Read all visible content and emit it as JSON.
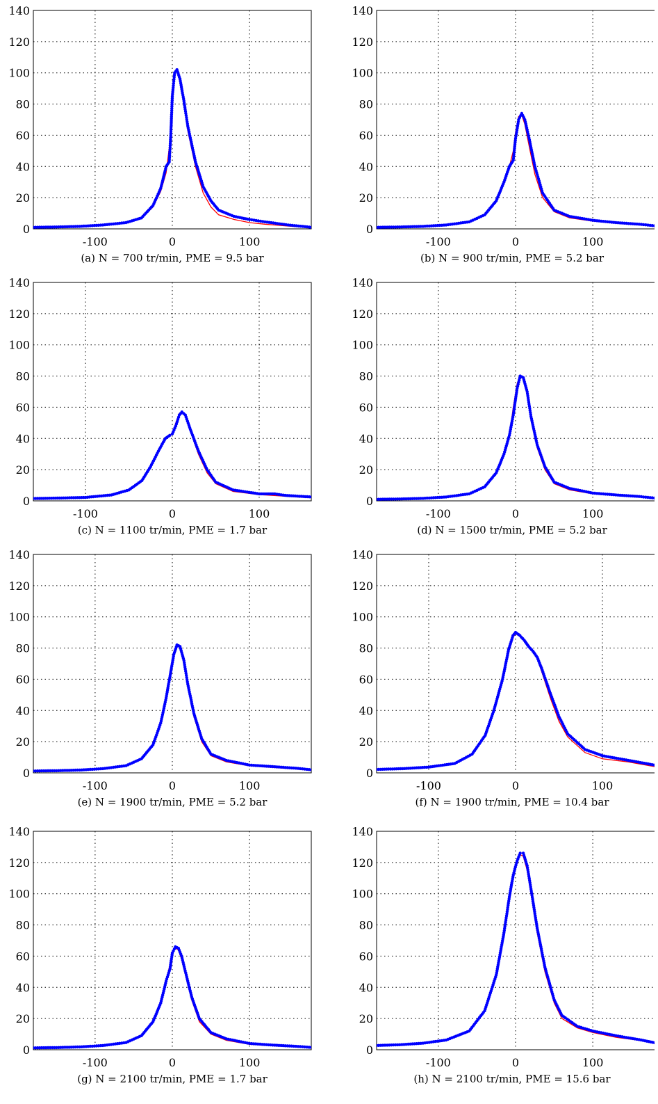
{
  "figure": {
    "y_ticks": [
      "0",
      "20",
      "40",
      "60",
      "80",
      "100",
      "120",
      "140"
    ],
    "x_ticks": [
      "-100",
      "0",
      "100"
    ]
  },
  "chart_data": [
    {
      "type": "line",
      "caption": "(a) N = 700 tr/min, PME = 9.5 bar",
      "xlim": [
        -180,
        180
      ],
      "ylim": [
        0,
        140
      ],
      "grid": true,
      "series": [
        {
          "color": "#ff0000",
          "marker": "line",
          "x": [
            -180,
            -150,
            -120,
            -90,
            -60,
            -40,
            -25,
            -15,
            -8,
            -3,
            0,
            3,
            6,
            10,
            15,
            20,
            30,
            40,
            50,
            60,
            80,
            100,
            120,
            150,
            180
          ],
          "y": [
            1,
            1.2,
            1.6,
            2.5,
            4,
            7,
            14,
            24,
            36,
            56,
            85,
            100,
            102,
            95,
            80,
            63,
            40,
            23,
            14,
            9,
            6,
            4,
            3,
            1.8,
            0.8
          ]
        },
        {
          "color": "#0000ff",
          "marker": "dot",
          "x": [
            -180,
            -150,
            -120,
            -90,
            -60,
            -40,
            -25,
            -15,
            -8,
            -4,
            -2,
            0,
            3,
            6,
            10,
            15,
            20,
            30,
            40,
            50,
            60,
            80,
            100,
            120,
            150,
            180
          ],
          "y": [
            1,
            1.2,
            1.6,
            2.5,
            4,
            7,
            15,
            26,
            40,
            43,
            60,
            85,
            100,
            102,
            96,
            82,
            66,
            43,
            27,
            18,
            12,
            8,
            6,
            4.5,
            2.5,
            1
          ]
        }
      ]
    },
    {
      "type": "line",
      "caption": "(b) N = 900 tr/min, PME = 5.2 bar",
      "xlim": [
        -180,
        180
      ],
      "ylim": [
        0,
        140
      ],
      "grid": true,
      "series": [
        {
          "color": "#ff0000",
          "marker": "line",
          "x": [
            -180,
            -150,
            -120,
            -90,
            -60,
            -40,
            -25,
            -15,
            -8,
            -3,
            0,
            4,
            8,
            12,
            18,
            25,
            35,
            50,
            70,
            100,
            130,
            160,
            180
          ],
          "y": [
            1,
            1.2,
            1.6,
            2.5,
            4.5,
            9,
            18,
            30,
            40,
            50,
            62,
            72,
            73,
            67,
            52,
            35,
            20,
            11,
            7,
            5,
            3.5,
            2.5,
            2
          ]
        },
        {
          "color": "#0000ff",
          "marker": "dot",
          "x": [
            -180,
            -150,
            -120,
            -90,
            -60,
            -40,
            -25,
            -15,
            -8,
            -3,
            0,
            4,
            8,
            12,
            18,
            25,
            35,
            50,
            70,
            100,
            130,
            160,
            180
          ],
          "y": [
            1,
            1.2,
            1.6,
            2.5,
            4.5,
            9,
            18,
            30,
            40,
            44,
            58,
            70,
            74,
            70,
            57,
            40,
            23,
            12,
            8,
            5.5,
            4,
            3,
            2
          ]
        }
      ]
    },
    {
      "type": "line",
      "caption": "(c) N = 1100 tr/min, PME = 1.7 bar",
      "xlim": [
        -160,
        160
      ],
      "ylim": [
        0,
        140
      ],
      "grid": true,
      "series": [
        {
          "color": "#ff0000",
          "marker": "line",
          "x": [
            -160,
            -130,
            -100,
            -70,
            -50,
            -35,
            -25,
            -15,
            -8,
            -3,
            0,
            4,
            8,
            11,
            15,
            20,
            30,
            40,
            50,
            70,
            100,
            130,
            160
          ],
          "y": [
            1,
            1.3,
            2,
            3.5,
            7,
            13,
            22,
            33,
            40,
            42,
            43,
            50,
            56,
            57,
            54,
            46,
            30,
            18,
            11,
            6,
            4,
            3,
            2
          ]
        },
        {
          "color": "#0000ff",
          "marker": "dot",
          "x": [
            -160,
            -130,
            -100,
            -70,
            -50,
            -35,
            -25,
            -15,
            -8,
            -3,
            0,
            4,
            8,
            11,
            15,
            20,
            30,
            40,
            50,
            70,
            100,
            118,
            130,
            160
          ],
          "y": [
            1.5,
            1.8,
            2.2,
            3.8,
            7,
            13,
            22,
            33,
            40,
            42,
            43,
            48,
            55,
            57,
            55,
            47,
            32,
            20,
            12,
            7,
            4.5,
            4.5,
            3.5,
            2.5
          ]
        }
      ]
    },
    {
      "type": "line",
      "caption": "(d) N = 1500 tr/min, PME = 5.2 bar",
      "xlim": [
        -180,
        180
      ],
      "ylim": [
        0,
        140
      ],
      "grid": true,
      "series": [
        {
          "color": "#ff0000",
          "marker": "line",
          "x": [
            -180,
            -150,
            -120,
            -90,
            -60,
            -40,
            -25,
            -15,
            -8,
            -3,
            2,
            6,
            10,
            15,
            20,
            28,
            38,
            50,
            70,
            100,
            130,
            160,
            180
          ],
          "y": [
            1,
            1.2,
            1.6,
            2.5,
            4.5,
            9,
            18,
            30,
            42,
            60,
            75,
            80,
            78,
            68,
            52,
            34,
            20,
            11,
            7,
            4.5,
            3.5,
            2.5,
            1.5
          ]
        },
        {
          "color": "#0000ff",
          "marker": "dot",
          "x": [
            -180,
            -150,
            -120,
            -90,
            -60,
            -40,
            -25,
            -15,
            -8,
            -3,
            2,
            6,
            10,
            15,
            20,
            28,
            38,
            50,
            70,
            100,
            130,
            160,
            180
          ],
          "y": [
            1,
            1.2,
            1.6,
            2.5,
            4.5,
            9,
            18,
            30,
            42,
            55,
            72,
            80,
            79,
            70,
            54,
            36,
            22,
            12,
            8,
            5,
            3.8,
            2.8,
            1.8
          ]
        }
      ]
    },
    {
      "type": "line",
      "caption": "(e) N = 1900 tr/min, PME = 5.2 bar",
      "xlim": [
        -180,
        180
      ],
      "ylim": [
        0,
        140
      ],
      "grid": true,
      "series": [
        {
          "color": "#ff0000",
          "marker": "line",
          "x": [
            -180,
            -150,
            -120,
            -90,
            -60,
            -40,
            -25,
            -15,
            -8,
            -3,
            2,
            6,
            10,
            15,
            20,
            28,
            38,
            50,
            70,
            100,
            130,
            160,
            180
          ],
          "y": [
            1,
            1.2,
            1.6,
            2.5,
            4.5,
            9,
            18,
            32,
            48,
            62,
            76,
            82,
            80,
            70,
            55,
            36,
            20,
            11,
            7,
            4.5,
            3.5,
            2.5,
            1.5
          ]
        },
        {
          "color": "#0000ff",
          "marker": "dot",
          "x": [
            -180,
            -150,
            -120,
            -90,
            -60,
            -40,
            -25,
            -15,
            -8,
            -3,
            2,
            6,
            10,
            15,
            20,
            28,
            38,
            50,
            70,
            100,
            130,
            160,
            180
          ],
          "y": [
            1.2,
            1.4,
            1.8,
            2.7,
            4.6,
            9,
            18,
            32,
            48,
            62,
            76,
            82,
            81,
            72,
            57,
            38,
            22,
            12,
            8,
            5,
            4,
            3,
            2
          ]
        }
      ]
    },
    {
      "type": "line",
      "caption": "(f) N = 1900 tr/min, PME = 10.4 bar",
      "xlim": [
        -160,
        160
      ],
      "ylim": [
        0,
        140
      ],
      "grid": true,
      "series": [
        {
          "color": "#ff0000",
          "marker": "line",
          "x": [
            -160,
            -130,
            -100,
            -70,
            -50,
            -35,
            -25,
            -15,
            -8,
            -3,
            0,
            5,
            10,
            15,
            20,
            25,
            30,
            40,
            50,
            60,
            80,
            100,
            130,
            160
          ],
          "y": [
            2,
            2.5,
            3.5,
            6,
            12,
            24,
            40,
            60,
            78,
            87,
            89,
            88,
            85,
            82,
            78,
            73,
            65,
            48,
            33,
            23,
            13,
            9,
            7,
            4
          ]
        },
        {
          "color": "#0000ff",
          "marker": "dot",
          "x": [
            -160,
            -130,
            -100,
            -70,
            -50,
            -35,
            -25,
            -15,
            -8,
            -3,
            0,
            5,
            10,
            15,
            20,
            25,
            30,
            40,
            50,
            60,
            80,
            100,
            130,
            160
          ],
          "y": [
            2.2,
            2.7,
            3.7,
            6,
            12,
            24,
            40,
            60,
            79,
            88,
            90,
            88,
            85,
            81,
            78,
            74,
            67,
            51,
            36,
            25,
            15,
            11,
            8,
            5
          ]
        }
      ]
    },
    {
      "type": "line",
      "caption": "(g) N = 2100 tr/min, PME = 1.7 bar",
      "xlim": [
        -180,
        180
      ],
      "ylim": [
        0,
        140
      ],
      "grid": true,
      "series": [
        {
          "color": "#ff0000",
          "marker": "line",
          "x": [
            -180,
            -150,
            -120,
            -90,
            -60,
            -40,
            -25,
            -15,
            -8,
            -3,
            0,
            4,
            8,
            12,
            18,
            25,
            35,
            50,
            70,
            100,
            130,
            160,
            180
          ],
          "y": [
            1,
            1.2,
            1.6,
            2.5,
            4.5,
            9,
            18,
            30,
            44,
            55,
            62,
            65,
            64,
            58,
            46,
            32,
            18,
            10,
            6,
            3.5,
            2.5,
            1.8,
            1.2
          ]
        },
        {
          "color": "#0000ff",
          "marker": "dot",
          "x": [
            -180,
            -150,
            -120,
            -90,
            -60,
            -40,
            -25,
            -15,
            -8,
            -3,
            0,
            4,
            8,
            12,
            18,
            25,
            35,
            50,
            70,
            100,
            130,
            160,
            180
          ],
          "y": [
            1.2,
            1.4,
            1.8,
            2.7,
            4.6,
            9,
            18,
            30,
            44,
            52,
            62,
            66,
            65,
            60,
            48,
            34,
            20,
            11,
            7,
            4,
            3,
            2.2,
            1.5
          ]
        }
      ]
    },
    {
      "type": "line",
      "caption": "(h) N = 2100 tr/min, PME = 15.6 bar",
      "xlim": [
        -180,
        180
      ],
      "ylim": [
        0,
        140
      ],
      "grid": true,
      "series": [
        {
          "color": "#ff0000",
          "marker": "line",
          "x": [
            -180,
            -150,
            -120,
            -90,
            -60,
            -40,
            -25,
            -15,
            -8,
            -3,
            2,
            6,
            10,
            15,
            20,
            28,
            38,
            50,
            60,
            80,
            100,
            130,
            160,
            180
          ],
          "y": [
            2.5,
            3,
            4,
            6,
            12,
            25,
            48,
            75,
            98,
            112,
            121,
            125,
            124,
            115,
            100,
            75,
            50,
            30,
            20,
            14,
            11,
            8,
            6,
            4
          ]
        },
        {
          "color": "#0000ff",
          "marker": "dot",
          "x": [
            -180,
            -150,
            -120,
            -90,
            -60,
            -40,
            -25,
            -15,
            -8,
            -3,
            2,
            6,
            10,
            15,
            20,
            28,
            38,
            50,
            60,
            80,
            100,
            130,
            160,
            180
          ],
          "y": [
            2.7,
            3.2,
            4.2,
            6.2,
            12,
            25,
            48,
            75,
            98,
            112,
            121,
            126,
            126,
            118,
            103,
            78,
            53,
            32,
            22,
            15,
            12,
            9,
            6.5,
            4.5
          ]
        }
      ]
    }
  ]
}
